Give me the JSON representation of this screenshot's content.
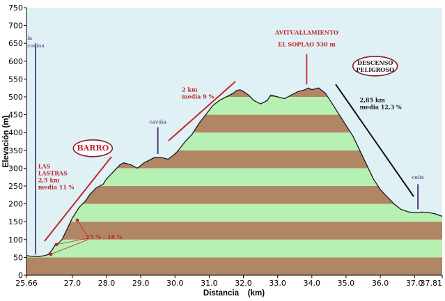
{
  "chart_data": {
    "type": "area",
    "title": "",
    "xlabel": "Distancia    (km)",
    "ylabel": "Elevación (m)",
    "xlim": [
      25.66,
      37.81
    ],
    "ylim": [
      0,
      750
    ],
    "x_ticks": [
      25.66,
      27.0,
      28.0,
      29.0,
      30.0,
      31.0,
      32.0,
      33.0,
      34.0,
      35.0,
      36.0,
      37.0,
      37.81
    ],
    "x_tick_labels": [
      "25.66",
      "27.0",
      "28.0",
      "29.0",
      "30.0",
      "31.0",
      "32.0",
      "33.0",
      "34.0",
      "35.0",
      "36.0",
      "37.0",
      "37.81"
    ],
    "y_ticks": [
      0,
      50,
      100,
      150,
      200,
      250,
      300,
      350,
      400,
      450,
      500,
      550,
      600,
      650,
      700,
      750
    ],
    "grid": false,
    "band_step": 50,
    "series": [
      {
        "x": [
          25.66,
          25.8,
          26.0,
          26.2,
          26.3,
          26.4,
          26.5,
          26.6,
          26.7,
          26.8,
          27.0,
          27.2,
          27.4,
          27.5,
          27.7,
          27.9,
          28.0,
          28.2,
          28.4,
          28.5,
          28.7,
          28.9,
          29.1,
          29.3,
          29.4,
          29.6,
          29.8,
          30.0,
          30.1,
          30.3,
          30.5,
          30.7,
          30.9,
          31.1,
          31.3,
          31.5,
          31.7,
          31.8,
          31.9,
          32.0,
          32.15,
          32.3,
          32.5,
          32.7,
          32.8,
          33.0,
          33.2,
          33.4,
          33.6,
          33.8,
          33.9,
          34.0,
          34.2,
          34.4,
          34.6,
          34.8,
          35.0,
          35.2,
          35.4,
          35.6,
          35.8,
          36.0,
          36.2,
          36.4,
          36.6,
          36.8,
          37.0,
          37.2,
          37.4,
          37.6,
          37.81
        ],
        "y": [
          55,
          53,
          52,
          55,
          58,
          70,
          85,
          90,
          100,
          120,
          160,
          190,
          210,
          225,
          245,
          255,
          270,
          290,
          310,
          315,
          310,
          300,
          315,
          325,
          330,
          330,
          325,
          340,
          350,
          375,
          395,
          425,
          450,
          475,
          490,
          500,
          510,
          518,
          520,
          515,
          505,
          490,
          480,
          490,
          505,
          500,
          495,
          505,
          515,
          520,
          525,
          520,
          525,
          510,
          480,
          450,
          420,
          390,
          350,
          310,
          270,
          240,
          220,
          200,
          185,
          178,
          175,
          177,
          176,
          172,
          165
        ]
      }
    ],
    "colors": {
      "background": "#dff1f5",
      "line": "#1a1a1a",
      "band_brown": "#b08664",
      "band_green": "#b6f0b2"
    },
    "annotations": [
      {
        "lines": [
          "la",
          "cocina"
        ],
        "x": 25.93,
        "y": 660,
        "marker_top": 650,
        "marker_bottom": 58
      },
      {
        "lines": [
          "BARRO"
        ],
        "x": 27.6,
        "y": 350,
        "ellipse": true
      },
      {
        "lines": [
          "LAS",
          "LASTRAS",
          "2,5 km",
          "media 11 %"
        ],
        "x": 26.0,
        "y": 300
      },
      {
        "lines": [
          "15 %  - 18 %"
        ],
        "x": 27.4,
        "y": 102
      },
      {
        "lines": [
          "caviña"
        ],
        "x": 29.5,
        "y": 425,
        "marker_top": 415,
        "marker_bottom": 340
      },
      {
        "lines": [
          "2 km",
          "media 9 %"
        ],
        "x": 30.2,
        "y": 515
      },
      {
        "lines": [
          "AVITUALLAMIENTO",
          "EL SOPLAO 530 m"
        ],
        "x": 33.85,
        "y": 675,
        "marker_top": 620,
        "marker_bottom": 535
      },
      {
        "lines": [
          "DESCENSO",
          "PELIGROSO"
        ],
        "x": 35.85,
        "y": 590,
        "ellipse": true
      },
      {
        "lines": [
          "2,85 km",
          "media 12,3 %"
        ],
        "x": 35.4,
        "y": 485
      },
      {
        "lines": [
          "celis"
        ],
        "x": 37.1,
        "y": 270,
        "marker_top": 255,
        "marker_bottom": 185
      }
    ]
  }
}
